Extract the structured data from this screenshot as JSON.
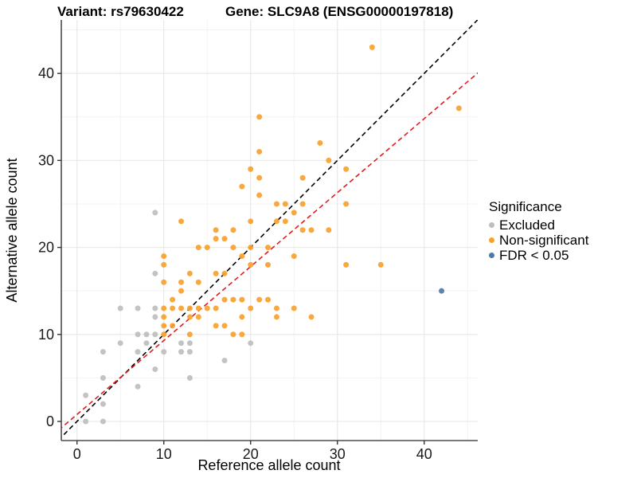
{
  "figure": {
    "title_variant": "Variant: rs79630422",
    "title_gene": "Gene: SLC9A8 (ENSG00000197818)"
  },
  "chart_data": {
    "type": "scatter",
    "xlabel": "Reference allele count",
    "ylabel": "Alternative allele count",
    "xlim": [
      -1.81,
      46.17
    ],
    "ylim": [
      -2.2,
      46.15
    ],
    "x_ticks": [
      0,
      10,
      20,
      30,
      40
    ],
    "y_ticks": [
      0,
      10,
      20,
      30,
      40
    ],
    "minor_ticks_x": [
      5,
      15,
      25,
      35,
      45
    ],
    "minor_ticks_y": [
      5,
      15,
      25,
      35,
      45
    ],
    "grid": true,
    "colors": {
      "major_grid": "#e5e5e5",
      "minor_grid": "#f2f2f2",
      "axis_line": "#4d4d4d",
      "identity_line": "#000000",
      "fit_line": "#e41a1c"
    },
    "legend": {
      "title": "Significance",
      "position": "right"
    },
    "reference_lines": [
      {
        "name": "identity",
        "slope": 1,
        "intercept": 0,
        "color": "#000000",
        "dashed": true
      },
      {
        "name": "fit",
        "slope": 0.85,
        "intercept": 0.8,
        "color": "#e41a1c",
        "dashed": true
      }
    ],
    "series": [
      {
        "name": "Excluded",
        "color": "#bebebe",
        "points": [
          [
            1,
            0
          ],
          [
            3,
            0
          ],
          [
            3,
            2
          ],
          [
            1,
            3
          ],
          [
            7,
            4
          ],
          [
            3,
            5
          ],
          [
            13,
            5
          ],
          [
            9,
            6
          ],
          [
            17,
            7
          ],
          [
            3,
            8
          ],
          [
            7,
            8
          ],
          [
            10,
            8
          ],
          [
            12,
            8
          ],
          [
            13,
            8
          ],
          [
            5,
            9
          ],
          [
            8,
            9
          ],
          [
            12,
            9
          ],
          [
            13,
            9
          ],
          [
            20,
            9
          ],
          [
            7,
            10
          ],
          [
            8,
            10
          ],
          [
            9,
            10
          ],
          [
            9,
            12
          ],
          [
            5,
            13
          ],
          [
            7,
            13
          ],
          [
            9,
            13
          ],
          [
            9,
            17
          ],
          [
            9,
            24
          ]
        ]
      },
      {
        "name": "Non-significant",
        "color": "#f9a12e",
        "points": [
          [
            10,
            10
          ],
          [
            13,
            10
          ],
          [
            18,
            10
          ],
          [
            19,
            10
          ],
          [
            10,
            11
          ],
          [
            11,
            11
          ],
          [
            16,
            11
          ],
          [
            17,
            11
          ],
          [
            10,
            12
          ],
          [
            13,
            12
          ],
          [
            14,
            12
          ],
          [
            19,
            12
          ],
          [
            23,
            12
          ],
          [
            27,
            12
          ],
          [
            10,
            13
          ],
          [
            11,
            13
          ],
          [
            12,
            13
          ],
          [
            13,
            13
          ],
          [
            14,
            13
          ],
          [
            15,
            13
          ],
          [
            16,
            13
          ],
          [
            20,
            13
          ],
          [
            23,
            13
          ],
          [
            25,
            13
          ],
          [
            11,
            14
          ],
          [
            17,
            14
          ],
          [
            18,
            14
          ],
          [
            19,
            14
          ],
          [
            21,
            14
          ],
          [
            22,
            14
          ],
          [
            12,
            15
          ],
          [
            10,
            16
          ],
          [
            12,
            16
          ],
          [
            14,
            16
          ],
          [
            13,
            17
          ],
          [
            16,
            17
          ],
          [
            17,
            17
          ],
          [
            10,
            18
          ],
          [
            20,
            18
          ],
          [
            22,
            18
          ],
          [
            31,
            18
          ],
          [
            35,
            18
          ],
          [
            10,
            19
          ],
          [
            19,
            19
          ],
          [
            25,
            19
          ],
          [
            14,
            20
          ],
          [
            15,
            20
          ],
          [
            18,
            20
          ],
          [
            20,
            20
          ],
          [
            22,
            20
          ],
          [
            16,
            21
          ],
          [
            17,
            21
          ],
          [
            16,
            22
          ],
          [
            18,
            22
          ],
          [
            26,
            22
          ],
          [
            27,
            22
          ],
          [
            29,
            22
          ],
          [
            12,
            23
          ],
          [
            20,
            23
          ],
          [
            23,
            23
          ],
          [
            24,
            23
          ],
          [
            25,
            24
          ],
          [
            23,
            25
          ],
          [
            24,
            25
          ],
          [
            26,
            25
          ],
          [
            31,
            25
          ],
          [
            21,
            26
          ],
          [
            19,
            27
          ],
          [
            21,
            28
          ],
          [
            26,
            28
          ],
          [
            20,
            29
          ],
          [
            31,
            29
          ],
          [
            29,
            30
          ],
          [
            21,
            31
          ],
          [
            28,
            32
          ],
          [
            21,
            35
          ],
          [
            44,
            36
          ],
          [
            34,
            43
          ]
        ]
      },
      {
        "name": "FDR < 0.05",
        "color": "#4e79a7",
        "points": [
          [
            42,
            15
          ]
        ]
      }
    ]
  }
}
